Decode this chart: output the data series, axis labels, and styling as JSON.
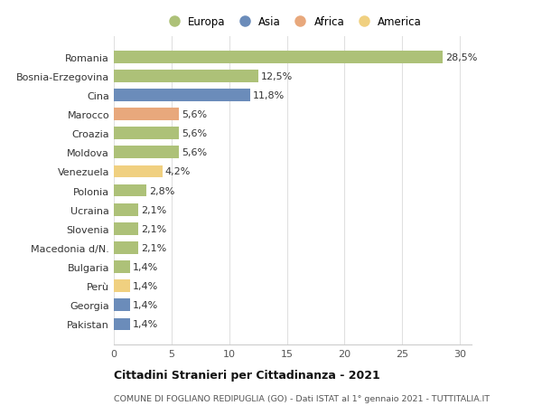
{
  "categories": [
    "Pakistan",
    "Georgia",
    "Perù",
    "Bulgaria",
    "Macedonia d/N.",
    "Slovenia",
    "Ucraina",
    "Polonia",
    "Venezuela",
    "Moldova",
    "Croazia",
    "Marocco",
    "Cina",
    "Bosnia-Erzegovina",
    "Romania"
  ],
  "values": [
    1.4,
    1.4,
    1.4,
    1.4,
    2.1,
    2.1,
    2.1,
    2.8,
    4.2,
    5.6,
    5.6,
    5.6,
    11.8,
    12.5,
    28.5
  ],
  "labels": [
    "1,4%",
    "1,4%",
    "1,4%",
    "1,4%",
    "2,1%",
    "2,1%",
    "2,1%",
    "2,8%",
    "4,2%",
    "5,6%",
    "5,6%",
    "5,6%",
    "11,8%",
    "12,5%",
    "28,5%"
  ],
  "continents": [
    "Asia",
    "Asia",
    "America",
    "Europa",
    "Europa",
    "Europa",
    "Europa",
    "Europa",
    "America",
    "Europa",
    "Europa",
    "Africa",
    "Asia",
    "Europa",
    "Europa"
  ],
  "continent_colors": {
    "Europa": "#adc178",
    "Asia": "#6b8cba",
    "Africa": "#e8a87c",
    "America": "#f0d080"
  },
  "legend_order": [
    "Europa",
    "Asia",
    "Africa",
    "America"
  ],
  "title1": "Cittadini Stranieri per Cittadinanza - 2021",
  "title2": "COMUNE DI FOGLIANO REDIPUGLIA (GO) - Dati ISTAT al 1° gennaio 2021 - TUTTITALIA.IT",
  "xlim": [
    0,
    31
  ],
  "xticks": [
    0,
    5,
    10,
    15,
    20,
    25,
    30
  ],
  "background_color": "#ffffff",
  "bar_height": 0.65,
  "grid_color": "#e0e0e0",
  "label_fontsize": 8.0,
  "tick_fontsize": 8.0,
  "legend_fontsize": 8.5
}
